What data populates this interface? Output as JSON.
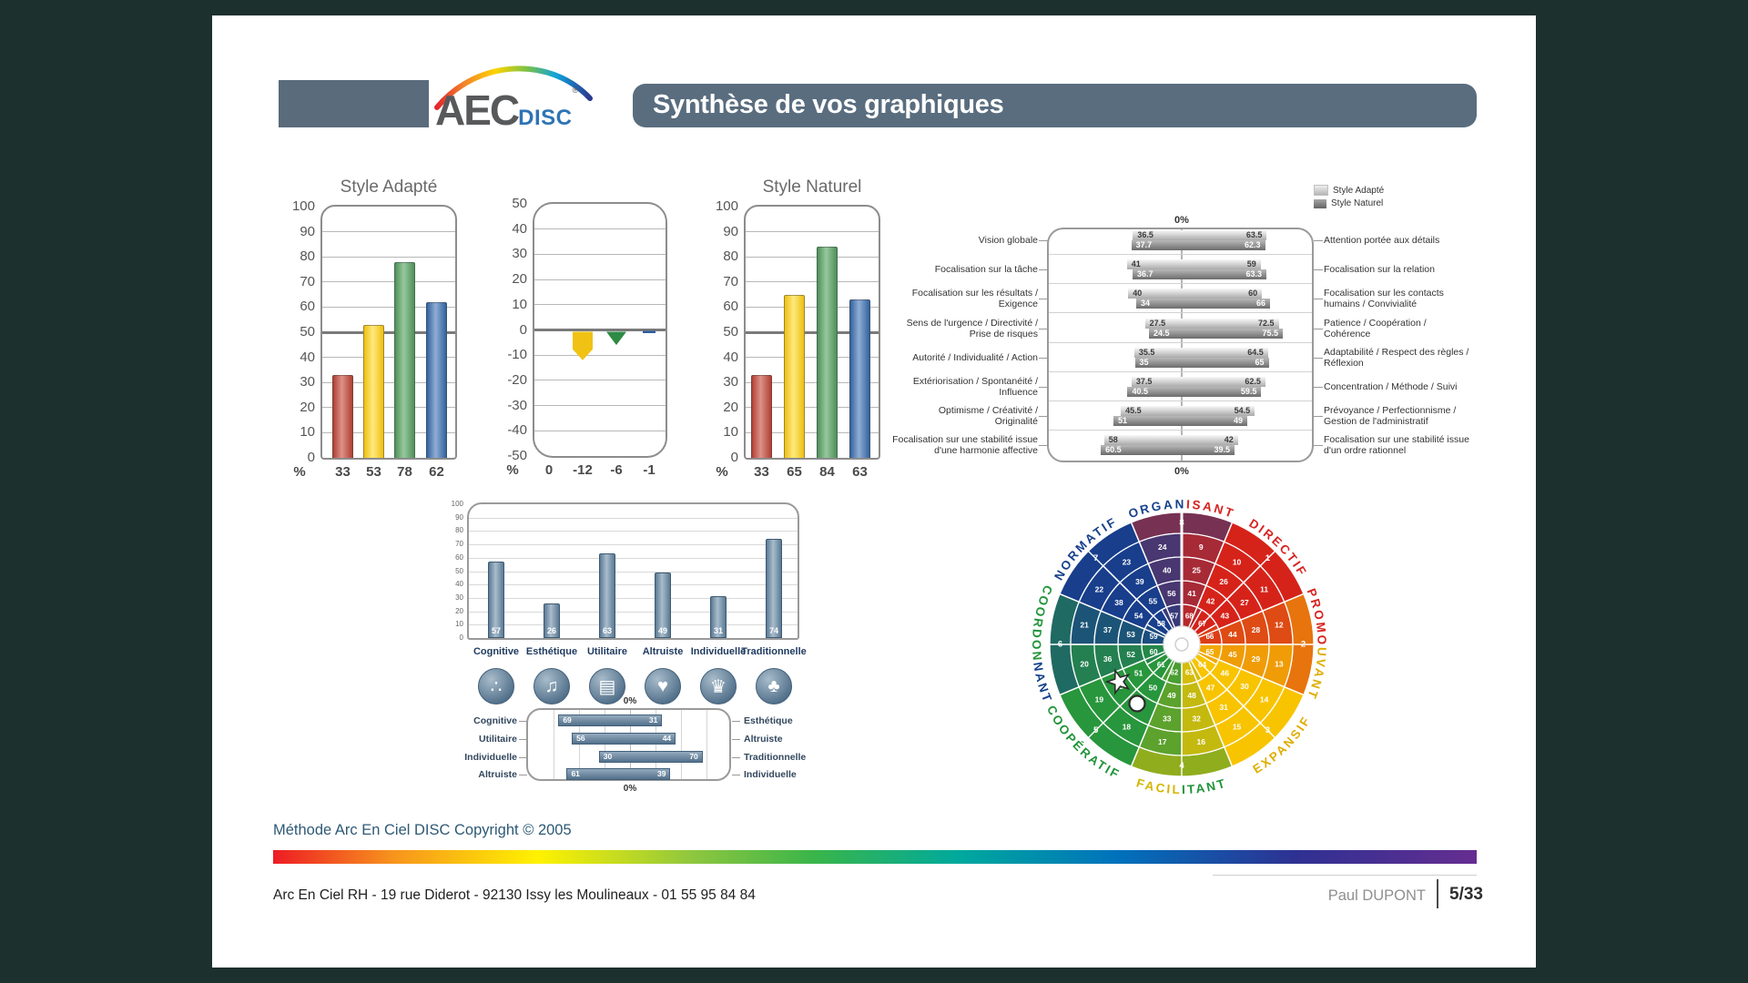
{
  "header": {
    "logo_aec": "AEC",
    "logo_disc": "DISC",
    "logo_reg": "®",
    "title": "Synthèse de vos graphiques"
  },
  "palette": {
    "red": "#d6231a",
    "yellow": "#f8c400",
    "green": "#289646",
    "blue": "#183e8c",
    "steel": "#5d7b94"
  },
  "chart_data": [
    {
      "id": "style_adapte",
      "type": "bar",
      "title": "Style Adapté",
      "unit_label": "%",
      "ylim": [
        0,
        100
      ],
      "ytick_step": 10,
      "grid": true,
      "values": [
        33,
        53,
        78,
        62
      ],
      "bar_colors": [
        "red",
        "yellow",
        "green",
        "blue"
      ]
    },
    {
      "id": "ecarts",
      "type": "marker-bar",
      "title": "",
      "unit_label": "%",
      "ylim": [
        -50,
        50
      ],
      "ytick_step": 10,
      "grid": true,
      "values": [
        0,
        -12,
        -6,
        -1
      ],
      "marker_colors": [
        "red",
        "yellow",
        "green",
        "blue"
      ]
    },
    {
      "id": "style_naturel",
      "type": "bar",
      "title": "Style Naturel",
      "unit_label": "%",
      "ylim": [
        0,
        100
      ],
      "ytick_step": 10,
      "grid": true,
      "values": [
        33,
        65,
        84,
        63
      ],
      "bar_colors": [
        "red",
        "yellow",
        "green",
        "blue"
      ]
    },
    {
      "id": "axes_comportementaux",
      "type": "diverging-bar",
      "legend": [
        {
          "label": "Style Adapté",
          "tone": "light"
        },
        {
          "label": "Style Naturel",
          "tone": "dark"
        }
      ],
      "center_label_top": "0%",
      "center_label_bottom": "0%",
      "rows": [
        {
          "left_label": "Vision globale",
          "right_label": "Attention portée aux détails",
          "adapte": [
            36.5,
            63.5
          ],
          "naturel": [
            37.7,
            62.3
          ]
        },
        {
          "left_label": "Focalisation sur la tâche",
          "right_label": "Focalisation sur la relation",
          "adapte": [
            41,
            59
          ],
          "naturel": [
            36.7,
            63.3
          ]
        },
        {
          "left_label": "Focalisation sur les résultats /\nExigence",
          "right_label": "Focalisation sur les contacts\nhumains / Convivialité",
          "adapte": [
            40,
            60
          ],
          "naturel": [
            34,
            66
          ]
        },
        {
          "left_label": "Sens de l'urgence / Directivité /\nPrise de risques",
          "right_label": "Patience / Coopération /\nCohérence",
          "adapte": [
            27.5,
            72.5
          ],
          "naturel": [
            24.5,
            75.5
          ]
        },
        {
          "left_label": "Autorité / Individualité / Action",
          "right_label": "Adaptabilité / Respect des règles /\nRéflexion",
          "adapte": [
            35.5,
            64.5
          ],
          "naturel": [
            35,
            65
          ]
        },
        {
          "left_label": "Extériorisation / Spontanéité /\nInfluence",
          "right_label": "Concentration / Méthode / Suivi",
          "adapte": [
            37.5,
            62.5
          ],
          "naturel": [
            40.5,
            59.5
          ]
        },
        {
          "left_label": "Optimisme / Créativité /\nOriginalité",
          "right_label": "Prévoyance / Perfectionnisme /\nGestion de l'administratif",
          "adapte": [
            45.5,
            54.5
          ],
          "naturel": [
            51,
            49
          ]
        },
        {
          "left_label": "Focalisation sur une stabilité issue\nd'une harmonie affective",
          "right_label": "Focalisation sur une stabilité issue\nd'un ordre rationnel",
          "adapte": [
            58,
            42
          ],
          "naturel": [
            60.5,
            39.5
          ]
        }
      ]
    },
    {
      "id": "valeurs",
      "type": "bar",
      "ylim": [
        0,
        100
      ],
      "ytick_step": 10,
      "categories": [
        "Cognitive",
        "Esthétique",
        "Utilitaire",
        "Altruiste",
        "Individuelle",
        "Traditionnelle"
      ],
      "values": [
        57,
        26,
        63,
        49,
        31,
        74
      ],
      "icons": [
        "cognitive-icon",
        "esthetique-icon",
        "utilitaire-icon",
        "altruiste-icon",
        "individuelle-icon",
        "traditionnelle-icon"
      ]
    },
    {
      "id": "valeurs_opposees",
      "type": "diverging-bar",
      "center_label_top": "0%",
      "center_label_bottom": "0%",
      "rows": [
        {
          "left_label": "Cognitive",
          "right_label": "Esthétique",
          "values": [
            69,
            31
          ]
        },
        {
          "left_label": "Utilitaire",
          "right_label": "Altruiste",
          "values": [
            56,
            44
          ]
        },
        {
          "left_label": "Individuelle",
          "right_label": "Traditionnelle",
          "values": [
            30,
            70
          ]
        },
        {
          "left_label": "Altruiste",
          "right_label": "Individuelle",
          "values": [
            61,
            39
          ]
        }
      ]
    },
    {
      "id": "roue_aec_disc",
      "type": "wheel",
      "labels": [
        {
          "angle": 0,
          "parts": [
            [
              "ORGAN",
              "#16418c"
            ],
            [
              "ISANT",
              "#d7231f"
            ]
          ]
        },
        {
          "angle": 45,
          "parts": [
            [
              "DIRECTIF",
              "#d7231f"
            ]
          ]
        },
        {
          "angle": 90,
          "parts": [
            [
              "PROMO",
              "#d7231f"
            ],
            [
              "UVANT",
              "#dfae00"
            ]
          ]
        },
        {
          "angle": 135,
          "parts": [
            [
              "EXPANSIF",
              "#dfae00"
            ]
          ]
        },
        {
          "angle": 180,
          "parts": [
            [
              "FACIL",
              "#d4b500"
            ],
            [
              "ITANT",
              "#1f9438"
            ]
          ]
        },
        {
          "angle": 225,
          "parts": [
            [
              "COOPÉRATIF",
              "#1f9438"
            ]
          ]
        },
        {
          "angle": 270,
          "parts": [
            [
              "COORDON",
              "#1f9438"
            ],
            [
              "NANT",
              "#16418c"
            ]
          ]
        },
        {
          "angle": 315,
          "parts": [
            [
              "NORMATIF",
              "#16418c"
            ]
          ]
        }
      ],
      "rings": [
        {
          "numbers": [
            8,
            1,
            2,
            3,
            4,
            5,
            6,
            7
          ],
          "start": -22.5,
          "step": 45
        },
        {
          "numbers": [
            9,
            10,
            11,
            12,
            13,
            14,
            15,
            16,
            17,
            18,
            19,
            20,
            21,
            22,
            23,
            24
          ],
          "start": 0,
          "step": 22.5
        },
        {
          "numbers": [
            25,
            26,
            27,
            28,
            29,
            30,
            31,
            32,
            33,
            34,
            35,
            36,
            37,
            38,
            39,
            40
          ],
          "start": 0,
          "step": 22.5
        },
        {
          "numbers": [
            41,
            42,
            43,
            44,
            45,
            46,
            47,
            48,
            49,
            50,
            51,
            52,
            53,
            54,
            55,
            56
          ],
          "start": 0,
          "step": 22.5
        },
        {
          "numbers": [
            68,
            67,
            66,
            65,
            64,
            63,
            62,
            61,
            60,
            59,
            58,
            57
          ],
          "start": 0,
          "step": 30
        }
      ],
      "markers": [
        {
          "shape": "star",
          "angle_deg": 239.3,
          "radius_frac": 0.554
        },
        {
          "shape": "circle",
          "angle_deg": 217,
          "radius_frac": 0.561
        }
      ]
    }
  ],
  "footer": {
    "copyright": "Méthode Arc En Ciel DISC Copyright © 2005",
    "address": "Arc En Ciel RH - 19 rue Diderot - 92130 Issy les Moulineaux - 01 55 95 84 84",
    "person": "Paul DUPONT",
    "page": "5/33"
  }
}
